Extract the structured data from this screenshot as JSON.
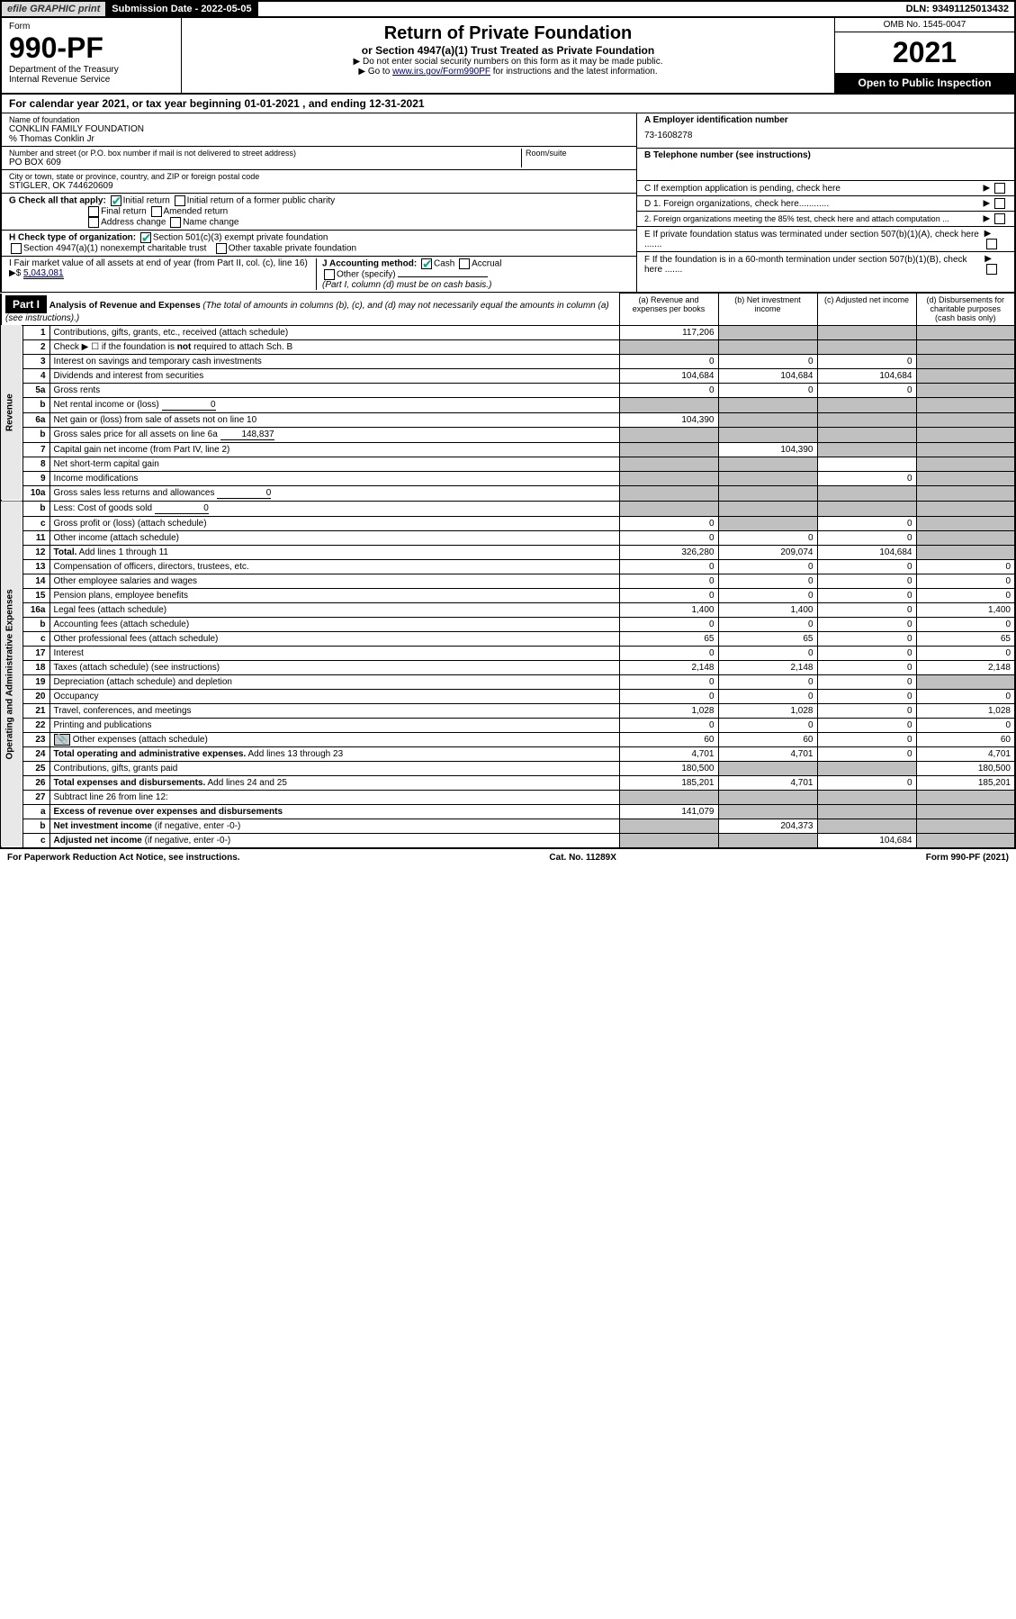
{
  "top": {
    "efile": "efile GRAPHIC print",
    "submission": "Submission Date - 2022-05-05",
    "dln": "DLN: 93491125013432"
  },
  "header": {
    "form_label": "Form",
    "form_number": "990-PF",
    "dept": "Department of the Treasury\nInternal Revenue Service",
    "title": "Return of Private Foundation",
    "subtitle": "or Section 4947(a)(1) Trust Treated as Private Foundation",
    "inst1": "▶ Do not enter social security numbers on this form as it may be made public.",
    "inst2_pre": "▶ Go to ",
    "inst2_link": "www.irs.gov/Form990PF",
    "inst2_post": " for instructions and the latest information.",
    "omb": "OMB No. 1545-0047",
    "year": "2021",
    "open": "Open to Public Inspection"
  },
  "calyear": "For calendar year 2021, or tax year beginning 01-01-2021                          , and ending 12-31-2021",
  "entity": {
    "name_lbl": "Name of foundation",
    "name": "CONKLIN FAMILY FOUNDATION",
    "care_of": "% Thomas Conklin Jr",
    "addr_lbl": "Number and street (or P.O. box number if mail is not delivered to street address)",
    "addr": "PO BOX 609",
    "room_lbl": "Room/suite",
    "city_lbl": "City or town, state or province, country, and ZIP or foreign postal code",
    "city": "STIGLER, OK  744620609",
    "ein_lbl": "A Employer identification number",
    "ein": "73-1608278",
    "phone_lbl": "B Telephone number (see instructions)",
    "c_lbl": "C If exemption application is pending, check here",
    "d1_lbl": "D 1. Foreign organizations, check here............",
    "d2_lbl": "2. Foreign organizations meeting the 85% test, check here and attach computation ...",
    "e_lbl": "E  If private foundation status was terminated under section 507(b)(1)(A), check here .......",
    "f_lbl": "F  If the foundation is in a 60-month termination under section 507(b)(1)(B), check here .......",
    "g_lbl": "G Check all that apply:",
    "g_opts": [
      "Initial return",
      "Initial return of a former public charity",
      "Final return",
      "Amended return",
      "Address change",
      "Name change"
    ],
    "h_lbl": "H Check type of organization:",
    "h1": "Section 501(c)(3) exempt private foundation",
    "h2": "Section 4947(a)(1) nonexempt charitable trust",
    "h3": "Other taxable private foundation",
    "i_lbl": "I Fair market value of all assets at end of year (from Part II, col. (c), line 16)",
    "i_val": "5,043,081",
    "j_lbl": "J Accounting method:",
    "j1": "Cash",
    "j2": "Accrual",
    "j3": "Other (specify)",
    "j_note": "(Part I, column (d) must be on cash basis.)"
  },
  "part1": {
    "hdr": "Part I",
    "title": "Analysis of Revenue and Expenses",
    "note": "(The total of amounts in columns (b), (c), and (d) may not necessarily equal the amounts in column (a) (see instructions).)",
    "cols": {
      "a": "(a)    Revenue and expenses per books",
      "b": "(b)    Net investment income",
      "c": "(c)   Adjusted net income",
      "d": "(d)   Disbursements for charitable purposes (cash basis only)"
    }
  },
  "side_labels": {
    "rev": "Revenue",
    "exp": "Operating and Administrative Expenses"
  },
  "rows": [
    {
      "n": "1",
      "d": "Contributions, gifts, grants, etc., received (attach schedule)",
      "a": "117,206",
      "b_s": 1,
      "c_s": 1,
      "d_s": 1
    },
    {
      "n": "2",
      "d": "Check ▶ ☐ if the foundation is <b>not</b> required to attach Sch. B",
      "dots": 1,
      "a_s": 1,
      "b_s": 1,
      "c_s": 1,
      "d_s": 1
    },
    {
      "n": "3",
      "d": "Interest on savings and temporary cash investments",
      "a": "0",
      "b": "0",
      "c": "0",
      "d_s": 1
    },
    {
      "n": "4",
      "d": "Dividends and interest from securities",
      "dots": 1,
      "a": "104,684",
      "b": "104,684",
      "c": "104,684",
      "d_s": 1
    },
    {
      "n": "5a",
      "d": "Gross rents",
      "dots": 1,
      "a": "0",
      "b": "0",
      "c": "0",
      "d_s": 1
    },
    {
      "n": "b",
      "d": "Net rental income or (loss)",
      "inline": "0",
      "a_s": 1,
      "b_s": 1,
      "c_s": 1,
      "d_s": 1
    },
    {
      "n": "6a",
      "d": "Net gain or (loss) from sale of assets not on line 10",
      "a": "104,390",
      "b_s": 1,
      "c_s": 1,
      "d_s": 1
    },
    {
      "n": "b",
      "d": "Gross sales price for all assets on line 6a",
      "inline": "148,837",
      "a_s": 1,
      "b_s": 1,
      "c_s": 1,
      "d_s": 1
    },
    {
      "n": "7",
      "d": "Capital gain net income (from Part IV, line 2)",
      "dots": 1,
      "a_s": 1,
      "b": "104,390",
      "c_s": 1,
      "d_s": 1
    },
    {
      "n": "8",
      "d": "Net short-term capital gain",
      "dots": 1,
      "a_s": 1,
      "b_s": 1,
      "c": "",
      "d_s": 1
    },
    {
      "n": "9",
      "d": "Income modifications",
      "dots": 1,
      "a_s": 1,
      "b_s": 1,
      "c": "0",
      "d_s": 1
    },
    {
      "n": "10a",
      "d": "Gross sales less returns and allowances",
      "inline": "0",
      "a_s": 1,
      "b_s": 1,
      "c_s": 1,
      "d_s": 1
    },
    {
      "n": "b",
      "d": "Less: Cost of goods sold",
      "dots": 1,
      "inline": "0",
      "a_s": 1,
      "b_s": 1,
      "c_s": 1,
      "d_s": 1
    },
    {
      "n": "c",
      "d": "Gross profit or (loss) (attach schedule)",
      "dots": 1,
      "a": "0",
      "b_s": 1,
      "c": "0",
      "d_s": 1
    },
    {
      "n": "11",
      "d": "Other income (attach schedule)",
      "dots": 1,
      "a": "0",
      "b": "0",
      "c": "0",
      "d_s": 1
    },
    {
      "n": "12",
      "d": "<b>Total.</b> Add lines 1 through 11",
      "dots": 1,
      "a": "326,280",
      "b": "209,074",
      "c": "104,684",
      "d_s": 1,
      "bold": 1
    },
    {
      "n": "13",
      "d": "Compensation of officers, directors, trustees, etc.",
      "a": "0",
      "b": "0",
      "c": "0",
      "dd": "0"
    },
    {
      "n": "14",
      "d": "Other employee salaries and wages",
      "dots": 1,
      "a": "0",
      "b": "0",
      "c": "0",
      "dd": "0"
    },
    {
      "n": "15",
      "d": "Pension plans, employee benefits",
      "dots": 1,
      "a": "0",
      "b": "0",
      "c": "0",
      "dd": "0"
    },
    {
      "n": "16a",
      "d": "Legal fees (attach schedule)",
      "dots": 1,
      "a": "1,400",
      "b": "1,400",
      "c": "0",
      "dd": "1,400"
    },
    {
      "n": "b",
      "d": "Accounting fees (attach schedule)",
      "dots": 1,
      "a": "0",
      "b": "0",
      "c": "0",
      "dd": "0"
    },
    {
      "n": "c",
      "d": "Other professional fees (attach schedule)",
      "dots": 1,
      "a": "65",
      "b": "65",
      "c": "0",
      "dd": "65"
    },
    {
      "n": "17",
      "d": "Interest",
      "dots": 1,
      "a": "0",
      "b": "0",
      "c": "0",
      "dd": "0"
    },
    {
      "n": "18",
      "d": "Taxes (attach schedule) (see instructions)",
      "dots": 1,
      "a": "2,148",
      "b": "2,148",
      "c": "0",
      "dd": "2,148"
    },
    {
      "n": "19",
      "d": "Depreciation (attach schedule) and depletion",
      "dots": 1,
      "a": "0",
      "b": "0",
      "c": "0",
      "d_s": 1
    },
    {
      "n": "20",
      "d": "Occupancy",
      "dots": 1,
      "a": "0",
      "b": "0",
      "c": "0",
      "dd": "0"
    },
    {
      "n": "21",
      "d": "Travel, conferences, and meetings",
      "dots": 1,
      "a": "1,028",
      "b": "1,028",
      "c": "0",
      "dd": "1,028"
    },
    {
      "n": "22",
      "d": "Printing and publications",
      "dots": 1,
      "a": "0",
      "b": "0",
      "c": "0",
      "dd": "0"
    },
    {
      "n": "23",
      "d": "Other expenses (attach schedule)",
      "dots": 1,
      "icon": 1,
      "a": "60",
      "b": "60",
      "c": "0",
      "dd": "60"
    },
    {
      "n": "24",
      "d": "<b>Total operating and administrative expenses.</b> Add lines 13 through 23",
      "dots": 1,
      "a": "4,701",
      "b": "4,701",
      "c": "0",
      "dd": "4,701"
    },
    {
      "n": "25",
      "d": "Contributions, gifts, grants paid",
      "dots": 1,
      "a": "180,500",
      "b_s": 1,
      "c_s": 1,
      "dd": "180,500"
    },
    {
      "n": "26",
      "d": "<b>Total expenses and disbursements.</b> Add lines 24 and 25",
      "a": "185,201",
      "b": "4,701",
      "c": "0",
      "dd": "185,201"
    },
    {
      "n": "27",
      "d": "Subtract line 26 from line 12:",
      "a_s": 1,
      "b_s": 1,
      "c_s": 1,
      "d_s": 1
    },
    {
      "n": "a",
      "d": "<b>Excess of revenue over expenses and disbursements</b>",
      "a": "141,079",
      "b_s": 1,
      "c_s": 1,
      "d_s": 1
    },
    {
      "n": "b",
      "d": "<b>Net investment income</b> (if negative, enter -0-)",
      "a_s": 1,
      "b": "204,373",
      "c_s": 1,
      "d_s": 1
    },
    {
      "n": "c",
      "d": "<b>Adjusted net income</b> (if negative, enter -0-)",
      "dots": 1,
      "a_s": 1,
      "b_s": 1,
      "c": "104,684",
      "d_s": 1
    }
  ],
  "footer": {
    "left": "For Paperwork Reduction Act Notice, see instructions.",
    "mid": "Cat. No. 11289X",
    "right": "Form 990-PF (2021)"
  }
}
